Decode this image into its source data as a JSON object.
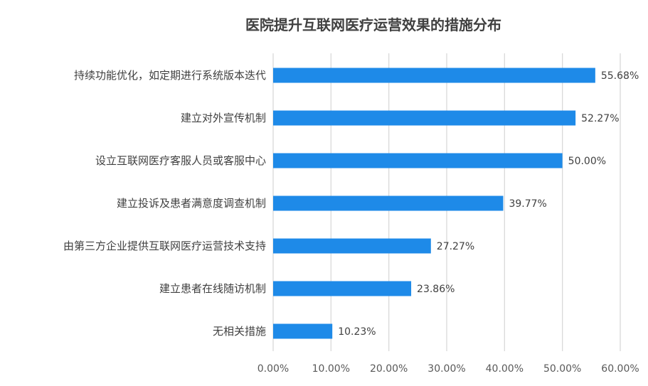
{
  "chart_data": {
    "type": "bar",
    "orientation": "horizontal",
    "title": "医院提升互联网医疗运营效果的措施分布",
    "xlabel": "",
    "ylabel": "",
    "xlim": [
      0,
      60
    ],
    "x_ticks": [
      "0.00%",
      "10.00%",
      "20.00%",
      "30.00%",
      "40.00%",
      "50.00%",
      "60.00%"
    ],
    "grid": "vertical",
    "bar_color": "#1e8ae8",
    "categories": [
      "持续功能优化，如定期进行系统版本迭代",
      "建立对外宣传机制",
      "设立互联网医疗客服人员或客服中心",
      "建立投诉及患者满意度调查机制",
      "由第三方企业提供互联网医疗运营技术支持",
      "建立患者在线随访机制",
      "无相关措施"
    ],
    "values": [
      55.68,
      52.27,
      50.0,
      39.77,
      27.27,
      23.86,
      10.23
    ],
    "value_labels": [
      "55.68%",
      "52.27%",
      "50.00%",
      "39.77%",
      "27.27%",
      "23.86%",
      "10.23%"
    ]
  }
}
